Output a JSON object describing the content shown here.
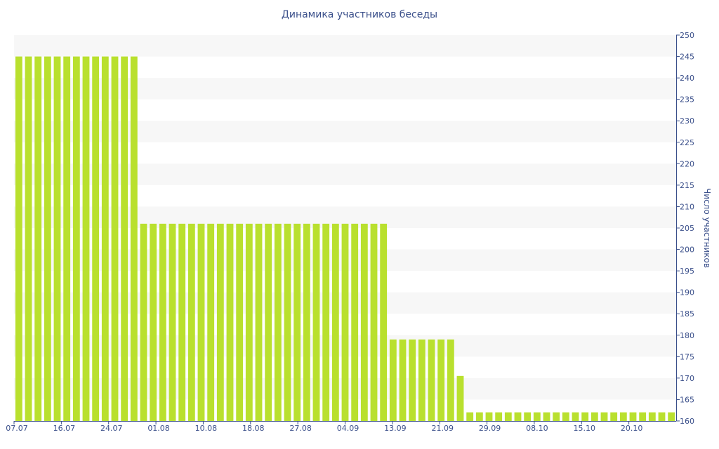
{
  "chart_data": {
    "type": "bar",
    "title": "Динамика участников беседы",
    "ylabel": "Число участников",
    "xlabel": "",
    "y_axis_side": "right",
    "ylim": [
      160,
      250
    ],
    "y_ticks": [
      160,
      165,
      170,
      175,
      180,
      185,
      190,
      195,
      200,
      205,
      210,
      215,
      220,
      225,
      230,
      235,
      240,
      245,
      250
    ],
    "x_tick_labels": [
      "07.07",
      "16.07",
      "24.07",
      "01.08",
      "10.08",
      "18.08",
      "27.08",
      "04.09",
      "13.09",
      "21.09",
      "29.09",
      "08.10",
      "15.10",
      "20.10"
    ],
    "grid": "horizontal alternating bands",
    "values": [
      245,
      245,
      245,
      245,
      245,
      245,
      245,
      245,
      245,
      245,
      245,
      245,
      245,
      206,
      206,
      206,
      206,
      206,
      206,
      206,
      206,
      206,
      206,
      206,
      206,
      206,
      206,
      206,
      206,
      206,
      206,
      206,
      206,
      206,
      206,
      206,
      206,
      206,
      206,
      179,
      179,
      179,
      179,
      179,
      179,
      179,
      170.5,
      162,
      162,
      162,
      162,
      162,
      162,
      162,
      162,
      162,
      162,
      162,
      162,
      162,
      162,
      162,
      162,
      162,
      162,
      162,
      162,
      162,
      162
    ],
    "colors": {
      "bar": "#b9e02e",
      "band": "#f7f7f7",
      "axis": "#3a4f8a",
      "text": "#3a4f8a"
    }
  }
}
